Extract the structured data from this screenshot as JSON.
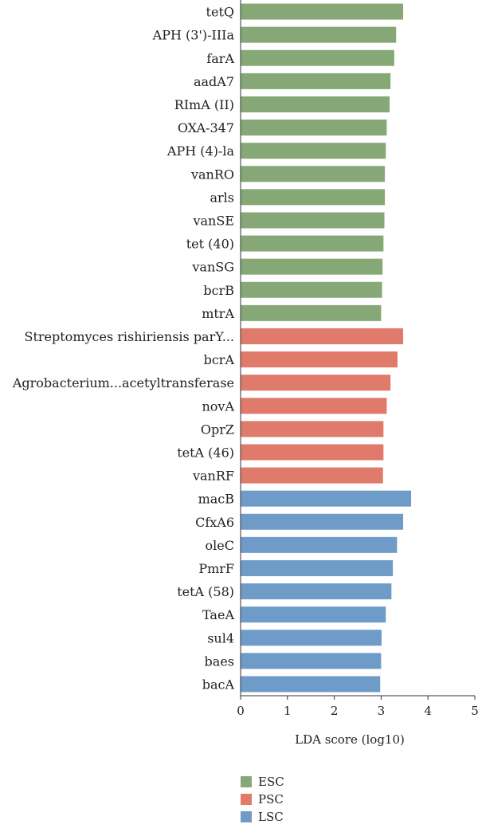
{
  "chart_data": {
    "type": "bar",
    "orientation": "horizontal",
    "xlabel": "LDA score (log10)",
    "xlim": [
      0,
      5
    ],
    "xticks": [
      "0",
      "1",
      "2",
      "3",
      "4",
      "5"
    ],
    "colors": {
      "ESC": "#86a876",
      "PSC": "#e07a6a",
      "LSC": "#6f9bc9"
    },
    "bars": [
      {
        "label": "tetQ",
        "value": 3.47,
        "group": "ESC"
      },
      {
        "label": "APH (3')-IIIa",
        "value": 3.32,
        "group": "ESC"
      },
      {
        "label": "farA",
        "value": 3.28,
        "group": "ESC"
      },
      {
        "label": "aadA7",
        "value": 3.2,
        "group": "ESC"
      },
      {
        "label": "RImA (II)",
        "value": 3.18,
        "group": "ESC"
      },
      {
        "label": "OXA-347",
        "value": 3.12,
        "group": "ESC"
      },
      {
        "label": "APH (4)-la",
        "value": 3.1,
        "group": "ESC"
      },
      {
        "label": "vanRO",
        "value": 3.08,
        "group": "ESC"
      },
      {
        "label": "arls",
        "value": 3.08,
        "group": "ESC"
      },
      {
        "label": "vanSE",
        "value": 3.07,
        "group": "ESC"
      },
      {
        "label": "tet (40)",
        "value": 3.05,
        "group": "ESC"
      },
      {
        "label": "vanSG",
        "value": 3.03,
        "group": "ESC"
      },
      {
        "label": "bcrB",
        "value": 3.02,
        "group": "ESC"
      },
      {
        "label": "mtrA",
        "value": 3.0,
        "group": "ESC"
      },
      {
        "label": "Streptomyces rishiriensis parY...",
        "value": 3.47,
        "group": "PSC"
      },
      {
        "label": "bcrA",
        "value": 3.35,
        "group": "PSC"
      },
      {
        "label": "Agrobacterium...acetyltransferase",
        "value": 3.2,
        "group": "PSC"
      },
      {
        "label": "novA",
        "value": 3.12,
        "group": "PSC"
      },
      {
        "label": "OprZ",
        "value": 3.05,
        "group": "PSC"
      },
      {
        "label": "tetA (46)",
        "value": 3.05,
        "group": "PSC"
      },
      {
        "label": "vanRF",
        "value": 3.04,
        "group": "PSC"
      },
      {
        "label": "macB",
        "value": 3.64,
        "group": "LSC"
      },
      {
        "label": "CfxA6",
        "value": 3.47,
        "group": "LSC"
      },
      {
        "label": "oleC",
        "value": 3.34,
        "group": "LSC"
      },
      {
        "label": "PmrF",
        "value": 3.25,
        "group": "LSC"
      },
      {
        "label": "tetA (58)",
        "value": 3.22,
        "group": "LSC"
      },
      {
        "label": "TaeA",
        "value": 3.1,
        "group": "LSC"
      },
      {
        "label": "sul4",
        "value": 3.01,
        "group": "LSC"
      },
      {
        "label": "baes",
        "value": 3.0,
        "group": "LSC"
      },
      {
        "label": "bacA",
        "value": 2.98,
        "group": "LSC"
      }
    ],
    "legend": [
      "ESC",
      "PSC",
      "LSC"
    ],
    "legend_position": "bottom"
  }
}
